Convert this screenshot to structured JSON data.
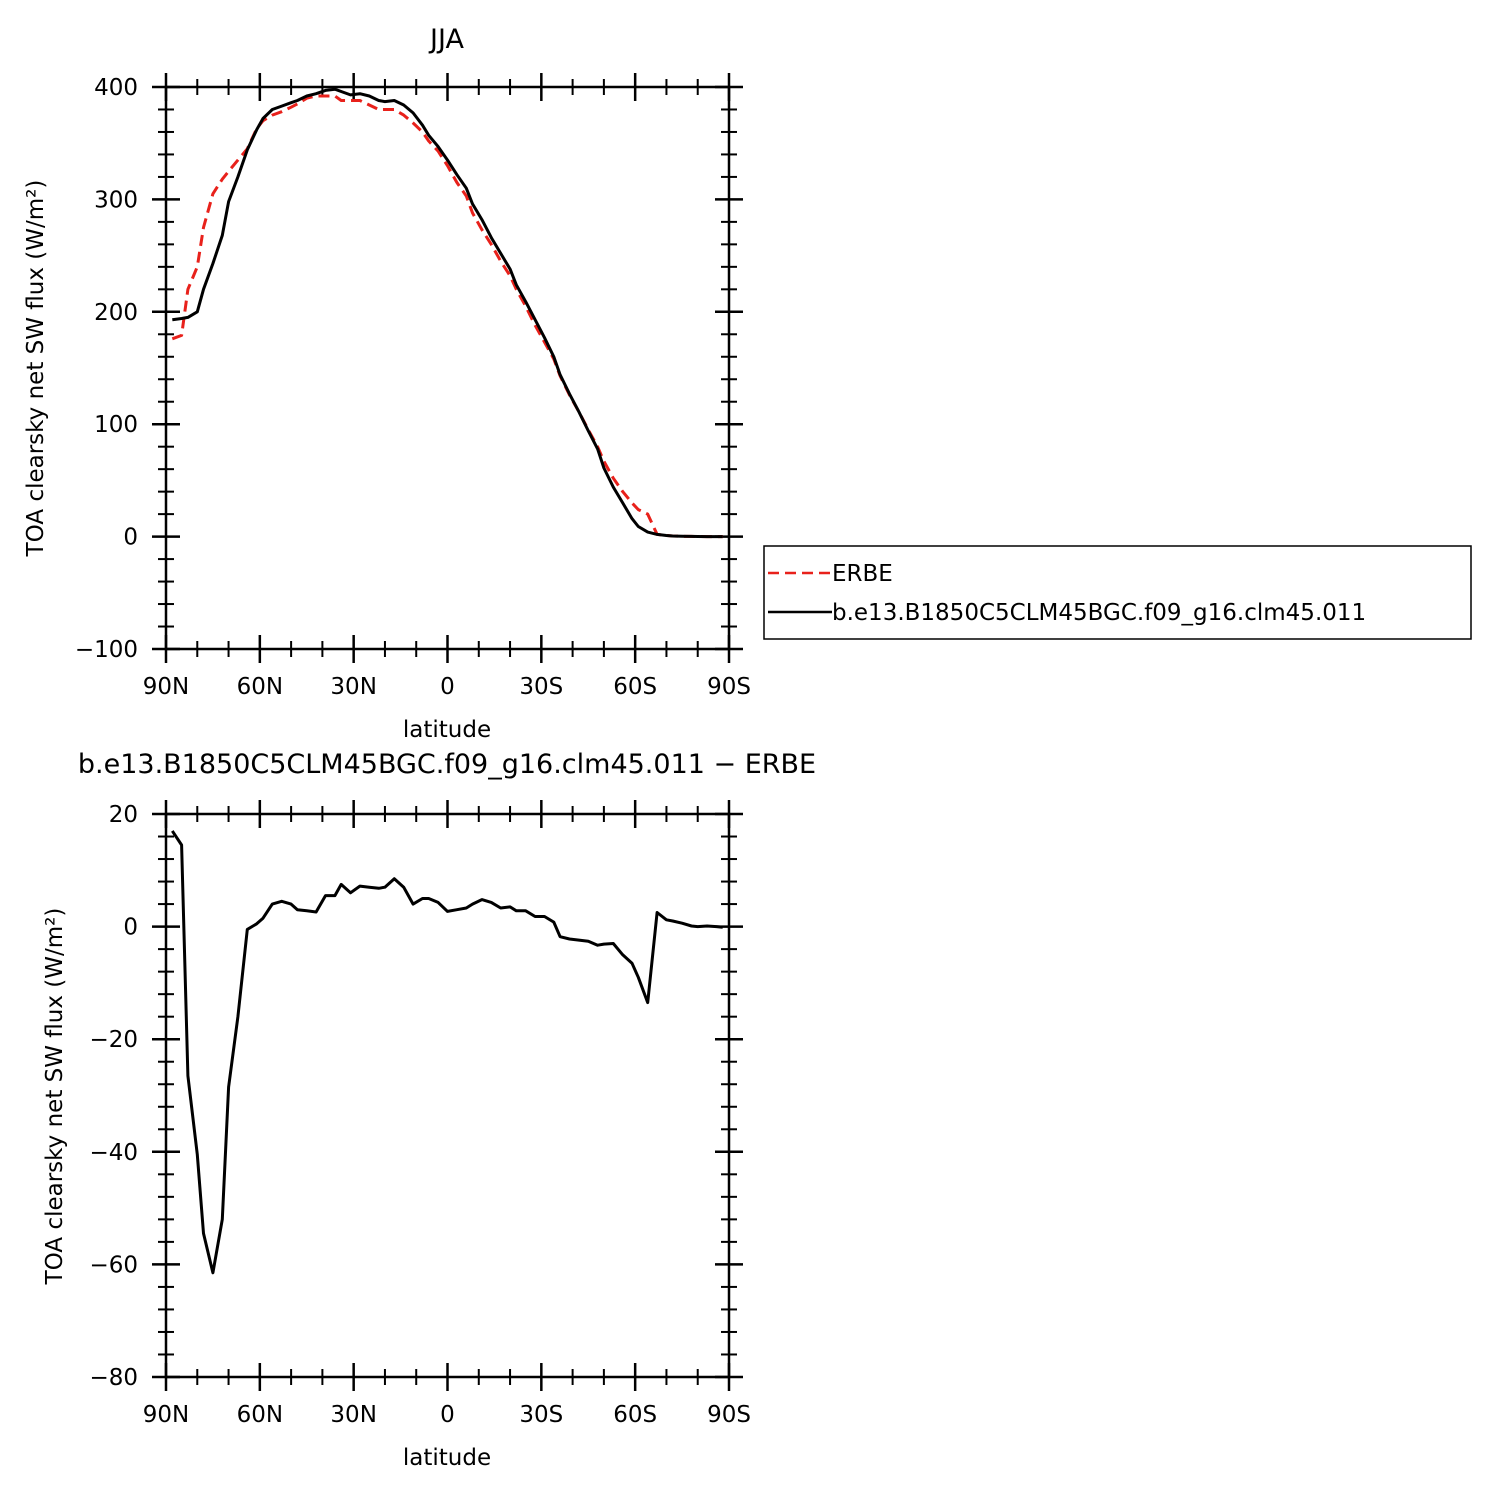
{
  "chart_data": [
    {
      "type": "line",
      "title": "JJA",
      "xlabel": "latitude",
      "ylabel": "TOA clearsky net SW flux (W/m²)",
      "x_tick_labels": [
        "90N",
        "60N",
        "30N",
        "0",
        "30S",
        "60S",
        "90S"
      ],
      "x_tick_values": [
        90,
        60,
        30,
        0,
        -30,
        -60,
        -90
      ],
      "y_tick_labels": [
        "400",
        "300",
        "200",
        "100",
        "0",
        "−100"
      ],
      "y_tick_values": [
        400,
        300,
        200,
        100,
        0,
        -100
      ],
      "xlim": [
        90,
        -90
      ],
      "ylim": [
        -100,
        400
      ],
      "legend_position": "right",
      "series": [
        {
          "name": "ERBE",
          "color": "#e8211b",
          "dash": "dashed",
          "x": [
            88,
            85,
            83,
            80,
            78,
            75,
            72,
            70,
            67,
            64,
            61,
            59,
            56,
            53,
            50,
            48,
            45,
            42,
            39,
            36,
            34,
            31,
            28,
            25,
            22,
            20,
            17,
            14,
            11,
            8,
            6,
            3,
            0,
            -3,
            -6,
            -8,
            -11,
            -14,
            -17,
            -20,
            -22,
            -25,
            -28,
            -31,
            -34,
            -36,
            -39,
            -42,
            -45,
            -48,
            -50,
            -53,
            -56,
            -59,
            -61,
            -64,
            -67,
            -70,
            -72,
            -75,
            -78,
            -80,
            -83,
            -86,
            -88
          ],
          "y": [
            176,
            179,
            220,
            240,
            275,
            305,
            318,
            325,
            335,
            345,
            363,
            370,
            375,
            378,
            382,
            385,
            390,
            392,
            392,
            392,
            388,
            388,
            388,
            384,
            380,
            380,
            380,
            375,
            368,
            360,
            352,
            343,
            330,
            315,
            303,
            288,
            273,
            260,
            245,
            232,
            220,
            205,
            188,
            173,
            158,
            143,
            126,
            111,
            95,
            80,
            67,
            52,
            40,
            30,
            24,
            20,
            2,
            1,
            0.5,
            0.3,
            0.2,
            0.1,
            0,
            0,
            0
          ]
        },
        {
          "name": "b.e13.B1850C5CLM45BGC.f09_g16.clm45.011",
          "color": "#000000",
          "dash": "solid",
          "x": [
            88,
            85,
            83,
            80,
            78,
            75,
            72,
            70,
            67,
            64,
            61,
            59,
            56,
            53,
            50,
            48,
            45,
            42,
            39,
            36,
            34,
            31,
            28,
            25,
            22,
            20,
            17,
            14,
            11,
            8,
            6,
            3,
            0,
            -3,
            -6,
            -8,
            -11,
            -14,
            -17,
            -20,
            -22,
            -25,
            -28,
            -31,
            -34,
            -36,
            -39,
            -42,
            -45,
            -48,
            -50,
            -53,
            -56,
            -59,
            -61,
            -64,
            -67,
            -70,
            -72,
            -75,
            -78,
            -80,
            -83,
            -86,
            -88
          ],
          "y": [
            193,
            194,
            195,
            200,
            220,
            243,
            268,
            298,
            320,
            344,
            362,
            372,
            380,
            383,
            386,
            388,
            392,
            394,
            397,
            398,
            396,
            393,
            394,
            392,
            388,
            387,
            388,
            384,
            377,
            366,
            357,
            347,
            335,
            322,
            310,
            296,
            282,
            266,
            252,
            238,
            224,
            209,
            193,
            177,
            160,
            144,
            127,
            111,
            94,
            78,
            61,
            44,
            30,
            16,
            9,
            4,
            2,
            1,
            0.5,
            0.3,
            0.2,
            0.1,
            0,
            0,
            0
          ]
        }
      ]
    },
    {
      "type": "line",
      "title": "b.e13.B1850C5CLM45BGC.f09_g16.clm45.011 − ERBE",
      "xlabel": "latitude",
      "ylabel": "TOA clearsky net SW flux (W/m²)",
      "x_tick_labels": [
        "90N",
        "60N",
        "30N",
        "0",
        "30S",
        "60S",
        "90S"
      ],
      "x_tick_values": [
        90,
        60,
        30,
        0,
        -30,
        -60,
        -90
      ],
      "y_tick_labels": [
        "20",
        "0",
        "−20",
        "−40",
        "−60",
        "−80"
      ],
      "y_tick_values": [
        20,
        0,
        -20,
        -40,
        -60,
        -80
      ],
      "xlim": [
        90,
        -90
      ],
      "ylim": [
        -80,
        20
      ],
      "series": [
        {
          "color": "#000000",
          "dash": "solid",
          "x": [
            88,
            85,
            83,
            80,
            78,
            75,
            72,
            70,
            67,
            64,
            61,
            59,
            56,
            53,
            50,
            48,
            45,
            42,
            39,
            36,
            34,
            31,
            28,
            25,
            22,
            20,
            17,
            14,
            11,
            8,
            6,
            3,
            0,
            -3,
            -6,
            -8,
            -11,
            -14,
            -17,
            -20,
            -22,
            -25,
            -28,
            -31,
            -34,
            -36,
            -39,
            -42,
            -45,
            -48,
            -50,
            -53,
            -56,
            -59,
            -61,
            -64,
            -67,
            -70,
            -72,
            -75,
            -78,
            -80,
            -83,
            -86,
            -88
          ],
          "y": [
            17,
            14.5,
            -26.5,
            -40.5,
            -54.5,
            -61.5,
            -52,
            -28.5,
            -16,
            -0.5,
            0.5,
            1.5,
            4,
            4.5,
            4,
            3,
            2.8,
            2.6,
            5.5,
            5.5,
            7.5,
            6,
            7.2,
            7,
            6.8,
            7,
            8.5,
            7,
            4,
            5,
            5,
            4.3,
            2.7,
            3,
            3.3,
            4,
            4.8,
            4.3,
            3.3,
            3.5,
            2.8,
            2.8,
            1.8,
            1.8,
            0.8,
            -1.8,
            -2.2,
            -2.4,
            -2.6,
            -3.3,
            -3.1,
            -3,
            -5,
            -6.5,
            -9,
            -13.5,
            2.5,
            1.2,
            1,
            0.6,
            0.1,
            0,
            0.1,
            0,
            -0.1
          ]
        }
      ]
    }
  ]
}
